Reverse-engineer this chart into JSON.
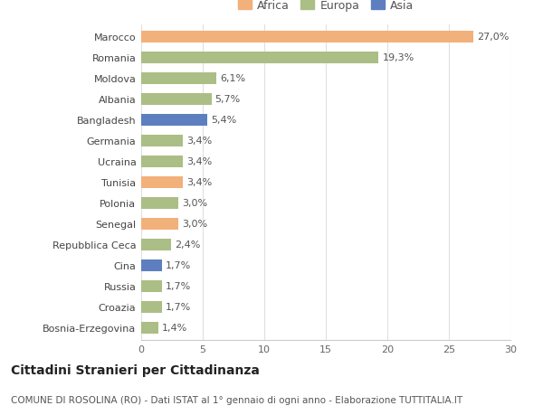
{
  "countries": [
    "Marocco",
    "Romania",
    "Moldova",
    "Albania",
    "Bangladesh",
    "Germania",
    "Ucraina",
    "Tunisia",
    "Polonia",
    "Senegal",
    "Repubblica Ceca",
    "Cina",
    "Russia",
    "Croazia",
    "Bosnia-Erzegovina"
  ],
  "values": [
    27.0,
    19.3,
    6.1,
    5.7,
    5.4,
    3.4,
    3.4,
    3.4,
    3.0,
    3.0,
    2.4,
    1.7,
    1.7,
    1.7,
    1.4
  ],
  "labels": [
    "27,0%",
    "19,3%",
    "6,1%",
    "5,7%",
    "5,4%",
    "3,4%",
    "3,4%",
    "3,4%",
    "3,0%",
    "3,0%",
    "2,4%",
    "1,7%",
    "1,7%",
    "1,7%",
    "1,4%"
  ],
  "continents": [
    "Africa",
    "Europa",
    "Europa",
    "Europa",
    "Asia",
    "Europa",
    "Europa",
    "Africa",
    "Europa",
    "Africa",
    "Europa",
    "Asia",
    "Europa",
    "Europa",
    "Europa"
  ],
  "colors": {
    "Africa": "#F2B07B",
    "Europa": "#ABBE85",
    "Asia": "#5E7FBF"
  },
  "legend_items": [
    "Africa",
    "Europa",
    "Asia"
  ],
  "legend_colors": [
    "#F2B07B",
    "#ABBE85",
    "#5E7FBF"
  ],
  "title": "Cittadini Stranieri per Cittadinanza",
  "subtitle": "COMUNE DI ROSOLINA (RO) - Dati ISTAT al 1° gennaio di ogni anno - Elaborazione TUTTITALIA.IT",
  "xlim": [
    0,
    30
  ],
  "xticks": [
    0,
    5,
    10,
    15,
    20,
    25,
    30
  ],
  "background_color": "#ffffff",
  "grid_color": "#e0e0e0",
  "bar_height": 0.6,
  "title_fontsize": 10,
  "subtitle_fontsize": 7.5,
  "label_fontsize": 8,
  "tick_fontsize": 8,
  "legend_fontsize": 9
}
